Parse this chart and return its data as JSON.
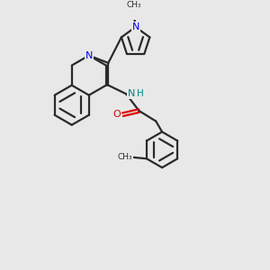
{
  "bg_color": "#e8e8e8",
  "bond_color": "#2a2a2a",
  "nitrogen_color": "#0000ee",
  "oxygen_color": "#dd0000",
  "nh_color": "#008888",
  "lw": 1.6,
  "figsize": [
    3.0,
    3.0
  ],
  "dpi": 100,
  "xlim": [
    0,
    10
  ],
  "ylim": [
    0,
    10
  ]
}
